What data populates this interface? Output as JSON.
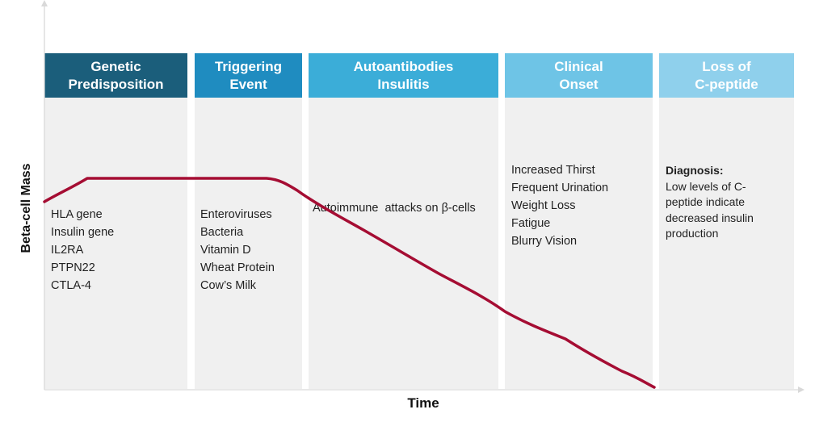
{
  "axes": {
    "y_label": "Beta-cell Mass",
    "x_label": "Time"
  },
  "colors": {
    "curve": "#a50d33",
    "axis": "#d9d9d9",
    "panel": "#f0f0f0"
  },
  "stages": [
    {
      "title": "Genetic\nPredisposition",
      "header_color": "#1b5e7b",
      "items": [
        "HLA gene",
        "Insulin gene",
        "IL2RA",
        "PTPN22",
        "CTLA-4"
      ]
    },
    {
      "title": "Triggering\nEvent",
      "header_color": "#1f8cc0",
      "items": [
        "Enteroviruses",
        "Bacteria",
        "Vitamin D",
        "Wheat Protein",
        "Cow’s Milk"
      ]
    },
    {
      "title": "Autoantibodies\nInsulitis",
      "header_color": "#3badd8",
      "items": [
        "Autoimmune  attacks on β-cells"
      ]
    },
    {
      "title": "Clinical\nOnset",
      "header_color": "#6ec4e6",
      "items": [
        "Increased Thirst",
        "Frequent Urination",
        "Weight Loss",
        "Fatigue",
        "Blurry Vision"
      ]
    },
    {
      "title": "Loss of\nC-peptide",
      "header_color": "#8fd0ec",
      "heading": "Diagnosis:",
      "items": [
        "Low levels of C-",
        "peptide indicate",
        "decreased insulin",
        "production"
      ]
    }
  ]
}
